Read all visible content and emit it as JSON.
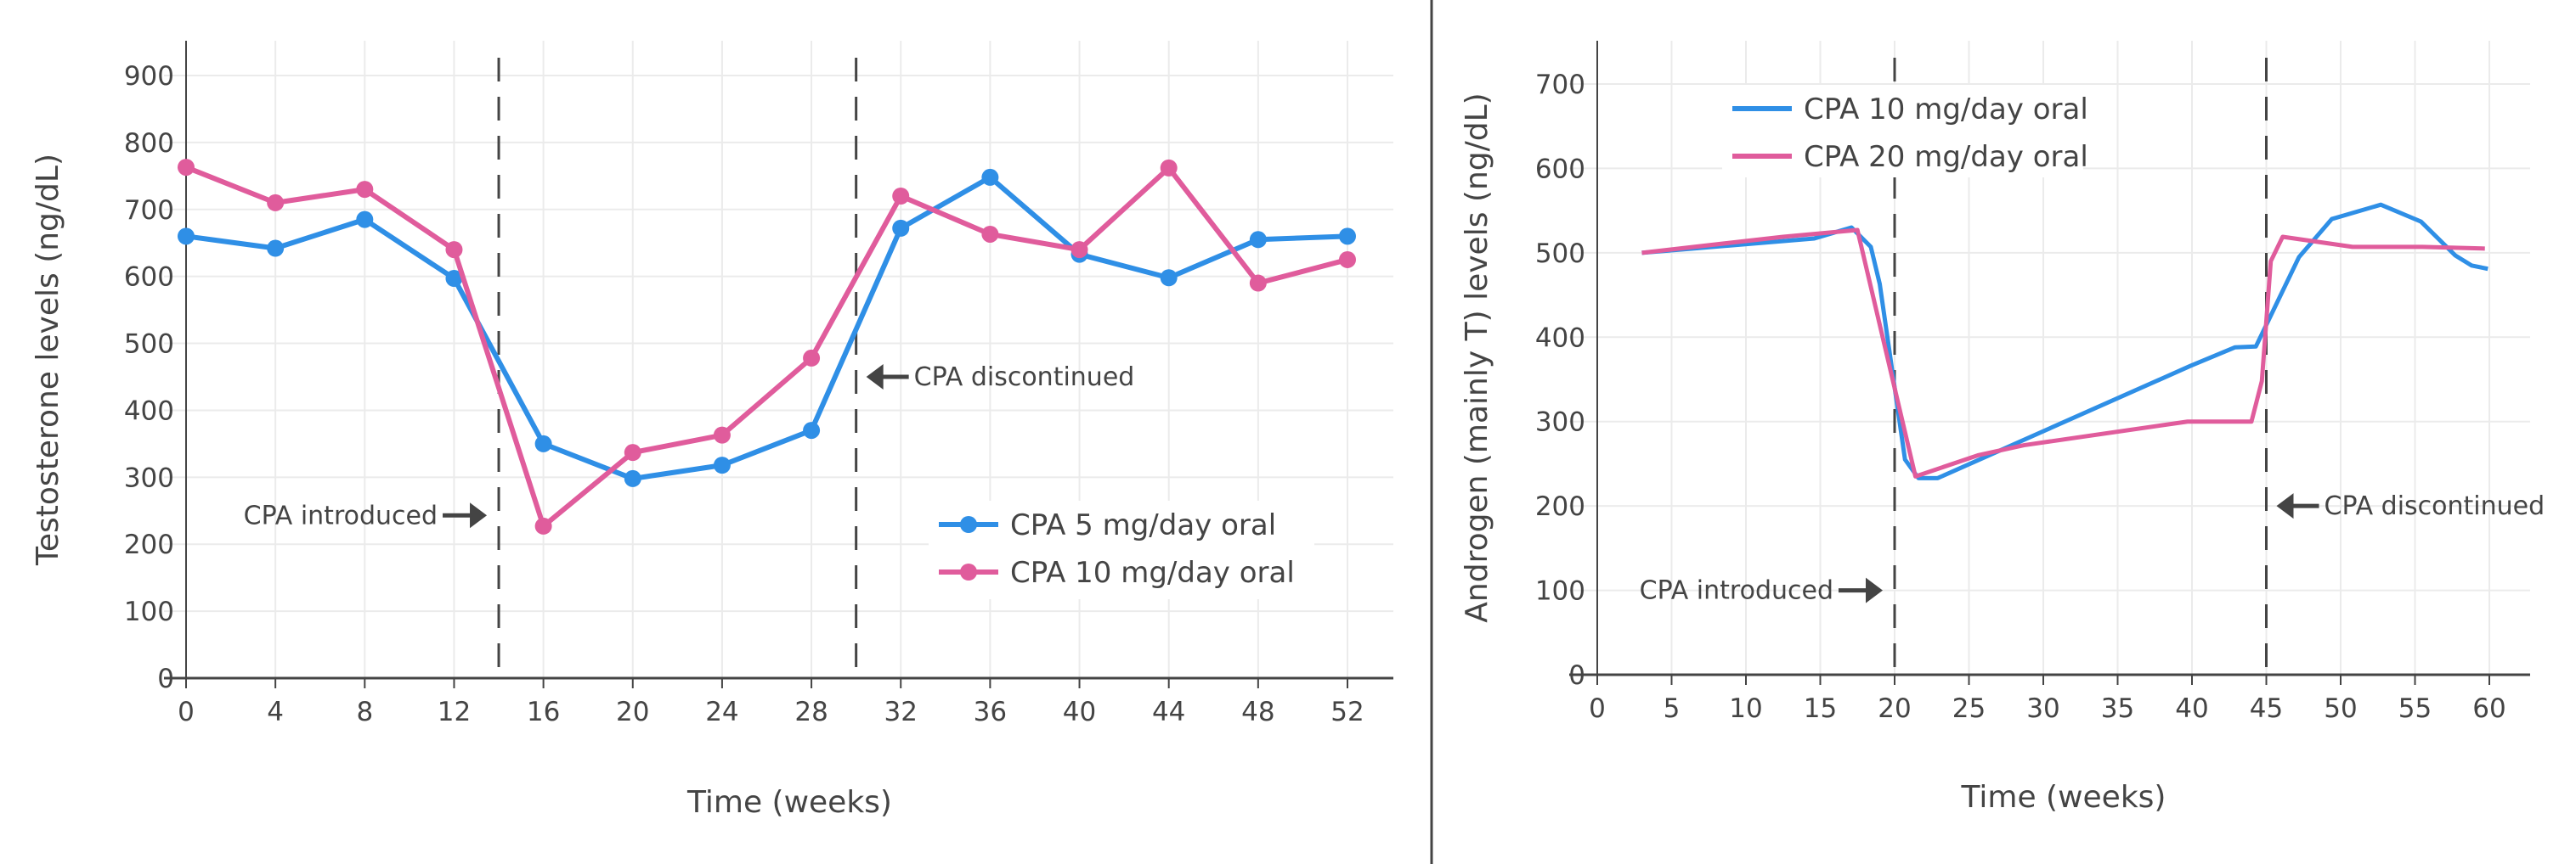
{
  "colors": {
    "series_a": "#2f8fe6",
    "series_b": "#e05c9c",
    "axis": "#444444",
    "grid": "#ebebeb"
  },
  "chart_data": [
    {
      "type": "line",
      "markers": true,
      "xlabel": "Time (weeks)",
      "ylabel": "Testosterone levels (ng/dL)",
      "xlim": [
        0,
        52
      ],
      "ylim": [
        0,
        900
      ],
      "xticks": [
        0,
        4,
        8,
        12,
        16,
        20,
        24,
        28,
        32,
        36,
        40,
        44,
        48,
        52
      ],
      "yticks": [
        0,
        100,
        200,
        300,
        400,
        500,
        600,
        700,
        800,
        900
      ],
      "grid": true,
      "legend_placement": "bottom-right",
      "series": [
        {
          "name": "CPA 5 mg/day oral",
          "color": "#2f8fe6",
          "x": [
            0,
            4,
            8,
            12,
            16,
            20,
            24,
            28,
            32,
            36,
            40,
            44,
            48,
            52
          ],
          "y": [
            660,
            642,
            685,
            597,
            350,
            298,
            318,
            370,
            672,
            748,
            633,
            598,
            655,
            660
          ]
        },
        {
          "name": "CPA 10 mg/day oral",
          "color": "#e05c9c",
          "x": [
            0,
            4,
            8,
            12,
            16,
            20,
            24,
            28,
            32,
            36,
            40,
            44,
            48,
            52
          ],
          "y": [
            763,
            710,
            730,
            640,
            227,
            337,
            363,
            478,
            720,
            663,
            640,
            762,
            590,
            625
          ]
        }
      ],
      "vlines": [
        14,
        30
      ],
      "annotations": [
        {
          "text": "CPA introduced",
          "x": 14,
          "y": 243,
          "arrow": "right"
        },
        {
          "text": "CPA discontinued",
          "x": 30,
          "y": 450,
          "arrow": "left"
        }
      ]
    },
    {
      "type": "line",
      "markers": false,
      "xlabel": "Time (weeks)",
      "ylabel": "Androgen (mainly T) levels (ng/dL)",
      "xlim": [
        0,
        60
      ],
      "ylim": [
        0,
        700
      ],
      "xticks": [
        0,
        5,
        10,
        15,
        20,
        25,
        30,
        35,
        40,
        45,
        50,
        55,
        60
      ],
      "yticks": [
        0,
        100,
        200,
        300,
        400,
        500,
        600,
        700
      ],
      "grid": true,
      "legend_placement": "top-left",
      "series": [
        {
          "name": "CPA 10 mg/day oral",
          "color": "#2f8fe6",
          "x": [
            3,
            14.6,
            17.1,
            18.4,
            19,
            20.7,
            21.6,
            22.9,
            39.9,
            42.9,
            44.3,
            47.2,
            49.4,
            52.7,
            55.4,
            57.7,
            58.8,
            59.9
          ],
          "y": [
            500,
            517,
            530,
            507,
            463,
            255,
            233,
            233,
            366,
            388,
            389,
            495,
            540,
            557,
            537,
            497,
            485,
            481
          ]
        },
        {
          "name": "CPA 20 mg/day oral",
          "color": "#e05c9c",
          "x": [
            3,
            12.5,
            17.5,
            21.4,
            25.6,
            28.7,
            39.7,
            44,
            44.7,
            45.3,
            46.1,
            50.8,
            55.5,
            59.7
          ],
          "y": [
            500,
            519,
            527,
            235,
            260,
            272,
            300,
            300,
            348,
            490,
            519,
            507,
            507,
            505
          ]
        }
      ],
      "vlines": [
        20,
        45
      ],
      "annotations": [
        {
          "text": "CPA introduced",
          "x": 20,
          "y": 100,
          "arrow": "right"
        },
        {
          "text": "CPA discontinued",
          "x": 45,
          "y": 200,
          "arrow": "left"
        }
      ]
    }
  ]
}
